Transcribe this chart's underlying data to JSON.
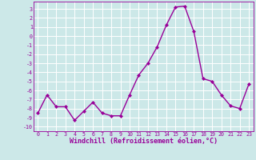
{
  "xlabel": "Windchill (Refroidissement éolien,°C)",
  "x_values": [
    0,
    1,
    2,
    3,
    4,
    5,
    6,
    7,
    8,
    9,
    10,
    11,
    12,
    13,
    14,
    15,
    16,
    17,
    18,
    19,
    20,
    21,
    22,
    23
  ],
  "y_values": [
    -8.5,
    -6.5,
    -7.8,
    -7.8,
    -9.3,
    -8.3,
    -7.3,
    -8.5,
    -8.8,
    -8.8,
    -6.5,
    -4.3,
    -3.0,
    -1.2,
    1.2,
    3.2,
    3.3,
    0.5,
    -4.7,
    -5.0,
    -6.5,
    -7.7,
    -8.0,
    -5.3
  ],
  "line_color": "#990099",
  "marker": "D",
  "marker_size": 2.0,
  "background_color": "#cce8e8",
  "grid_color": "#ffffff",
  "ylim": [
    -10.5,
    3.8
  ],
  "xlim": [
    -0.5,
    23.5
  ],
  "yticks": [
    3,
    2,
    1,
    0,
    -1,
    -2,
    -3,
    -4,
    -5,
    -6,
    -7,
    -8,
    -9,
    -10
  ],
  "xticks": [
    0,
    1,
    2,
    3,
    4,
    5,
    6,
    7,
    8,
    9,
    10,
    11,
    12,
    13,
    14,
    15,
    16,
    17,
    18,
    19,
    20,
    21,
    22,
    23
  ],
  "tick_color": "#990099",
  "tick_fontsize": 4.8,
  "xlabel_fontsize": 6.0,
  "line_width": 1.0,
  "spine_color": "#990099"
}
